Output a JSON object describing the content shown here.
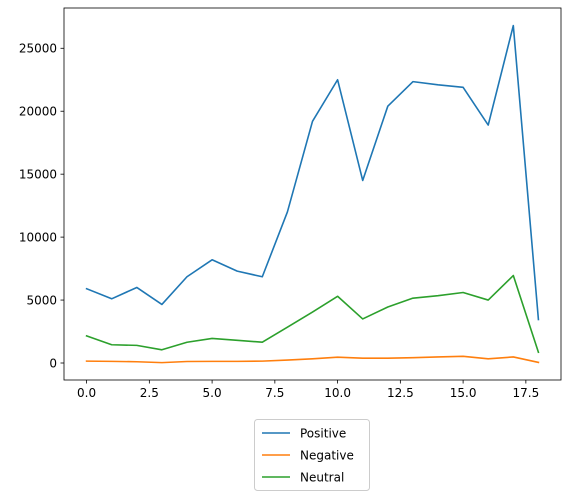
{
  "chart_data": {
    "type": "line",
    "title": "",
    "xlabel": "",
    "ylabel": "",
    "x": [
      0,
      1,
      2,
      3,
      4,
      5,
      6,
      7,
      8,
      9,
      10,
      11,
      12,
      13,
      14,
      15,
      16,
      17,
      18
    ],
    "xlim": [
      -0.9,
      18.9
    ],
    "ylim": [
      -1350,
      28200
    ],
    "xticks": [
      0,
      2.5,
      5,
      7.5,
      10,
      12.5,
      15,
      17.5
    ],
    "xtick_labels": [
      "0.0",
      "2.5",
      "5.0",
      "7.5",
      "10.0",
      "12.5",
      "15.0",
      "17.5"
    ],
    "yticks": [
      0,
      5000,
      10000,
      15000,
      20000,
      25000
    ],
    "ytick_labels": [
      "0",
      "5000",
      "10000",
      "15000",
      "20000",
      "25000"
    ],
    "grid": false,
    "legend_position": "bottom-center-outside",
    "series": [
      {
        "name": "Positive",
        "color": "#1f77b4",
        "values": [
          5900,
          5100,
          6000,
          4650,
          6850,
          8200,
          7300,
          6850,
          12000,
          19200,
          22500,
          14500,
          20400,
          22350,
          22100,
          21900,
          18900,
          26800,
          3450
        ]
      },
      {
        "name": "Negative",
        "color": "#ff7f0e",
        "values": [
          150,
          130,
          100,
          30,
          120,
          130,
          130,
          150,
          230,
          330,
          460,
          380,
          380,
          420,
          480,
          530,
          330,
          480,
          50
        ]
      },
      {
        "name": "Neutral",
        "color": "#2ca02c",
        "values": [
          2150,
          1450,
          1400,
          1050,
          1650,
          1950,
          1800,
          1650,
          2850,
          4050,
          5300,
          3500,
          4450,
          5150,
          5350,
          5600,
          5000,
          6950,
          850
        ]
      }
    ]
  }
}
